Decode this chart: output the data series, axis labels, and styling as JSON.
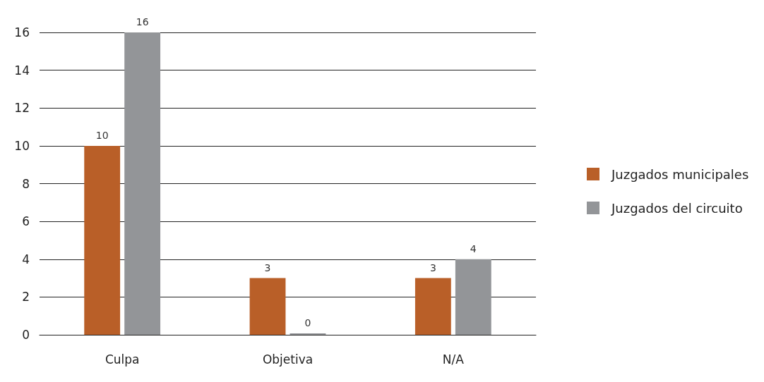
{
  "chart_data": {
    "type": "bar",
    "categories": [
      "Culpa",
      "Objetiva",
      "N/A"
    ],
    "series": [
      {
        "name": "Juzgados municipales",
        "color": "#b95f28",
        "values": [
          10,
          3,
          3
        ]
      },
      {
        "name": "Juzgados del circuito",
        "color": "#939598",
        "values": [
          16,
          0,
          4
        ]
      }
    ],
    "ylim": [
      0,
      16
    ],
    "yticks": [
      0,
      2,
      4,
      6,
      8,
      10,
      12,
      14,
      16
    ],
    "grid": "y",
    "legend": "right",
    "data_labels": true
  }
}
